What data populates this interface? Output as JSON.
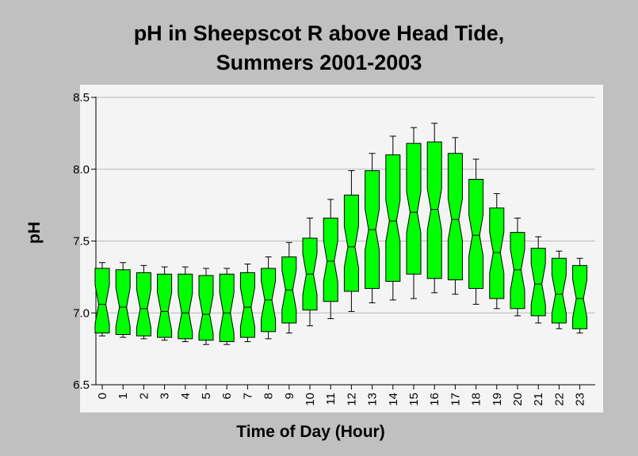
{
  "chart_data": {
    "type": "box",
    "title": "pH in Sheepscot R above Head Tide,",
    "subtitle": "Summers 2001-2003",
    "xlabel": "Time of Day (Hour)",
    "ylabel": "pH",
    "ylim": [
      6.5,
      8.5
    ],
    "yticks": [
      "6.5",
      "7.0",
      "7.5",
      "8.0",
      "8.5"
    ],
    "grid": true,
    "box_color": "#00ff00",
    "plot_bg": "#f4f4f4",
    "categories": [
      "0",
      "1",
      "2",
      "3",
      "4",
      "5",
      "6",
      "7",
      "8",
      "9",
      "10",
      "11",
      "12",
      "13",
      "14",
      "15",
      "16",
      "17",
      "18",
      "19",
      "20",
      "21",
      "22",
      "23"
    ],
    "boxes": [
      {
        "whisker_low": 6.84,
        "q1": 6.86,
        "median": 7.06,
        "q3": 7.31,
        "whisker_high": 7.35
      },
      {
        "whisker_low": 6.83,
        "q1": 6.85,
        "median": 7.04,
        "q3": 7.3,
        "whisker_high": 7.35
      },
      {
        "whisker_low": 6.82,
        "q1": 6.84,
        "median": 7.03,
        "q3": 7.28,
        "whisker_high": 7.33
      },
      {
        "whisker_low": 6.81,
        "q1": 6.83,
        "median": 7.01,
        "q3": 7.27,
        "whisker_high": 7.32
      },
      {
        "whisker_low": 6.8,
        "q1": 6.82,
        "median": 7.0,
        "q3": 7.27,
        "whisker_high": 7.32
      },
      {
        "whisker_low": 6.78,
        "q1": 6.81,
        "median": 6.99,
        "q3": 7.26,
        "whisker_high": 7.31
      },
      {
        "whisker_low": 6.78,
        "q1": 6.8,
        "median": 7.0,
        "q3": 7.27,
        "whisker_high": 7.31
      },
      {
        "whisker_low": 6.8,
        "q1": 6.83,
        "median": 7.04,
        "q3": 7.28,
        "whisker_high": 7.34
      },
      {
        "whisker_low": 6.82,
        "q1": 6.87,
        "median": 7.09,
        "q3": 7.31,
        "whisker_high": 7.39
      },
      {
        "whisker_low": 6.86,
        "q1": 6.93,
        "median": 7.16,
        "q3": 7.39,
        "whisker_high": 7.49
      },
      {
        "whisker_low": 6.91,
        "q1": 7.02,
        "median": 7.27,
        "q3": 7.52,
        "whisker_high": 7.66
      },
      {
        "whisker_low": 6.96,
        "q1": 7.08,
        "median": 7.36,
        "q3": 7.66,
        "whisker_high": 7.79
      },
      {
        "whisker_low": 7.01,
        "q1": 7.15,
        "median": 7.46,
        "q3": 7.82,
        "whisker_high": 7.99
      },
      {
        "whisker_low": 7.07,
        "q1": 7.17,
        "median": 7.58,
        "q3": 7.99,
        "whisker_high": 8.11
      },
      {
        "whisker_low": 7.09,
        "q1": 7.22,
        "median": 7.64,
        "q3": 8.1,
        "whisker_high": 8.23
      },
      {
        "whisker_low": 7.1,
        "q1": 7.27,
        "median": 7.7,
        "q3": 8.18,
        "whisker_high": 8.29
      },
      {
        "whisker_low": 7.14,
        "q1": 7.24,
        "median": 7.72,
        "q3": 8.19,
        "whisker_high": 8.32
      },
      {
        "whisker_low": 7.13,
        "q1": 7.23,
        "median": 7.65,
        "q3": 8.11,
        "whisker_high": 8.22
      },
      {
        "whisker_low": 7.06,
        "q1": 7.17,
        "median": 7.54,
        "q3": 7.93,
        "whisker_high": 8.07
      },
      {
        "whisker_low": 7.03,
        "q1": 7.1,
        "median": 7.42,
        "q3": 7.73,
        "whisker_high": 7.83
      },
      {
        "whisker_low": 6.98,
        "q1": 7.03,
        "median": 7.3,
        "q3": 7.56,
        "whisker_high": 7.66
      },
      {
        "whisker_low": 6.93,
        "q1": 6.98,
        "median": 7.2,
        "q3": 7.45,
        "whisker_high": 7.53
      },
      {
        "whisker_low": 6.89,
        "q1": 6.93,
        "median": 7.13,
        "q3": 7.38,
        "whisker_high": 7.43
      },
      {
        "whisker_low": 6.86,
        "q1": 6.89,
        "median": 7.1,
        "q3": 7.33,
        "whisker_high": 7.38
      }
    ]
  }
}
